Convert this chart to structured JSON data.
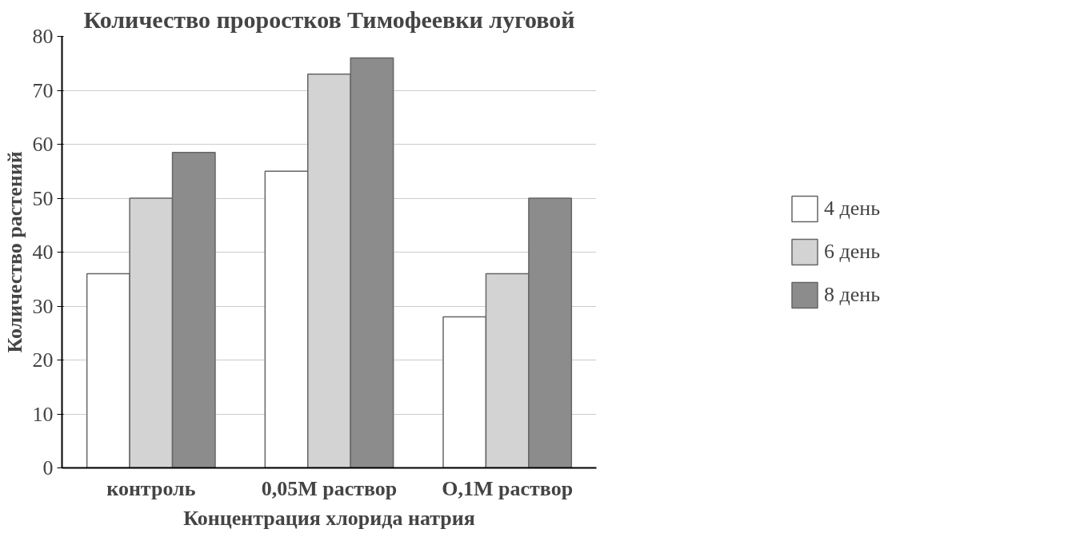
{
  "chart_data": {
    "type": "bar",
    "title": "Количество проростков Тимофеевки луговой",
    "xlabel": "Концентрация хлорида натрия",
    "ylabel": "Количество растений",
    "categories": [
      "контроль",
      "0,05M раствор",
      "O,1M раствор"
    ],
    "series": [
      {
        "name": "4 день",
        "color": "#ffffff",
        "values": [
          36,
          55,
          28
        ]
      },
      {
        "name": "6 день",
        "color": "#d3d3d3",
        "values": [
          50,
          73,
          36
        ]
      },
      {
        "name": "8 день",
        "color": "#8c8c8c",
        "values": [
          58.5,
          76,
          50
        ]
      }
    ],
    "ylim": [
      0,
      80
    ],
    "yticks": [
      0,
      10,
      20,
      30,
      40,
      50,
      60,
      70,
      80
    ],
    "grid": "y",
    "legend": "right"
  }
}
